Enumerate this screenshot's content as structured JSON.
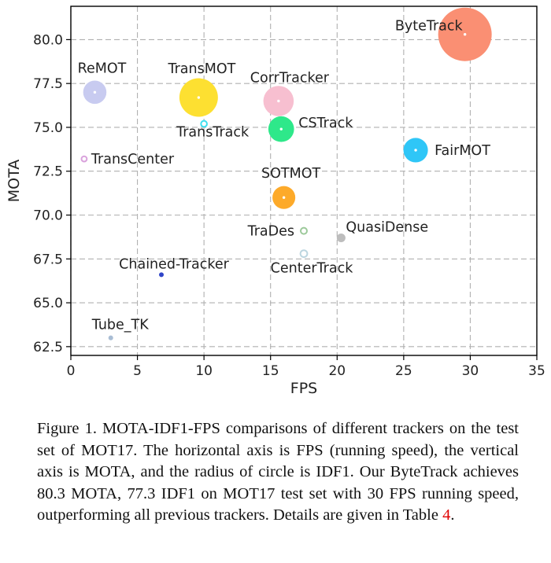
{
  "chart_data": {
    "type": "scatter",
    "xlabel": "FPS",
    "ylabel": "MOTA",
    "xlim": [
      0,
      35
    ],
    "ylim": [
      62,
      81.9
    ],
    "xticks": [
      "0",
      "5",
      "10",
      "15",
      "20",
      "25",
      "30",
      "35"
    ],
    "yticks": [
      "62.5",
      "65.0",
      "67.5",
      "70.0",
      "72.5",
      "75.0",
      "77.5",
      "80.0"
    ],
    "grid": true,
    "points": [
      {
        "label": "ByteTrack",
        "x": 29.6,
        "y": 80.3,
        "idf1": 77.3,
        "color": "#fa8f73"
      },
      {
        "label": "ReMOT",
        "x": 1.8,
        "y": 77.0,
        "idf1": 72.0,
        "color": "#c8cbf0"
      },
      {
        "label": "TransMOT",
        "x": 9.6,
        "y": 76.7,
        "idf1": 75.1,
        "color": "#fde031"
      },
      {
        "label": "CorrTracker",
        "x": 15.6,
        "y": 76.5,
        "idf1": 73.6,
        "color": "#f7bfd0"
      },
      {
        "label": "TransTrack",
        "x": 10.0,
        "y": 75.2,
        "idf1": 63.5,
        "color": "#3ee0f0"
      },
      {
        "label": "CSTrack",
        "x": 15.8,
        "y": 74.9,
        "idf1": 72.6,
        "color": "#2ee88a"
      },
      {
        "label": "FairMOT",
        "x": 25.9,
        "y": 73.7,
        "idf1": 72.3,
        "color": "#2fc6f7"
      },
      {
        "label": "TransCenter",
        "x": 1.0,
        "y": 73.2,
        "idf1": 62.2,
        "color": "#d9a2dc"
      },
      {
        "label": "SOTMOT",
        "x": 16.0,
        "y": 71.0,
        "idf1": 71.9,
        "color": "#fdaa2a"
      },
      {
        "label": "TraDes",
        "x": 17.5,
        "y": 69.1,
        "idf1": 63.9,
        "color": "#9cc99a"
      },
      {
        "label": "QuasiDense",
        "x": 20.3,
        "y": 68.7,
        "idf1": 66.3,
        "color": "#bdbdbd"
      },
      {
        "label": "CenterTrack",
        "x": 17.5,
        "y": 67.8,
        "idf1": 64.7,
        "color": "#bcd6e0"
      },
      {
        "label": "Chained-Tracker",
        "x": 6.8,
        "y": 66.6,
        "idf1": 57.4,
        "color": "#3045c8"
      },
      {
        "label": "Tube_TK",
        "x": 3.0,
        "y": 63.0,
        "idf1": 58.6,
        "color": "#a9bdd4"
      }
    ]
  },
  "caption": {
    "text": "Figure 1. MOTA-IDF1-FPS comparisons of different trackers on the test set of MOT17. The horizontal axis is FPS (running speed), the vertical axis is MOTA, and the radius of circle is IDF1. Our ByteTrack achieves 80.3 MOTA, 77.3 IDF1 on MOT17 test set with 30 FPS running speed, outperforming all previous trackers. Details are given in Table ",
    "ref": "4",
    "end": ".",
    "ref_color": "#e00000"
  }
}
